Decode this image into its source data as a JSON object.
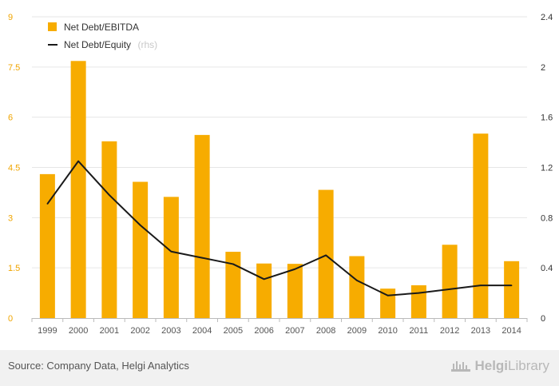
{
  "chart_data": {
    "type": "bar",
    "categories": [
      "1999",
      "2000",
      "2001",
      "2002",
      "2003",
      "2004",
      "2005",
      "2006",
      "2007",
      "2008",
      "2009",
      "2010",
      "2011",
      "2012",
      "2013",
      "2014"
    ],
    "series": [
      {
        "name": "Net Debt/EBITDA",
        "type": "bar",
        "axis": "left",
        "color": "#f7ac00",
        "values": [
          4.3,
          7.68,
          5.28,
          4.07,
          3.62,
          5.47,
          1.98,
          1.63,
          1.62,
          3.83,
          1.85,
          0.88,
          0.98,
          2.19,
          5.51,
          1.7
        ]
      },
      {
        "name": "Net Debt/Equity",
        "note": "(rhs)",
        "type": "line",
        "axis": "right",
        "color": "#1a1a1a",
        "values": [
          0.91,
          1.25,
          0.98,
          0.74,
          0.53,
          0.48,
          0.43,
          0.31,
          0.39,
          0.5,
          0.3,
          0.18,
          0.2,
          0.23,
          0.26,
          0.26
        ]
      }
    ],
    "yleft": {
      "ticks": [
        "0",
        "1.5",
        "3",
        "4.5",
        "6",
        "7.5",
        "9"
      ],
      "ylim": [
        0,
        9
      ]
    },
    "yright": {
      "ticks": [
        "0",
        "0.4",
        "0.8",
        "1.2",
        "1.6",
        "2",
        "2.4"
      ],
      "ylim": [
        0,
        2.4
      ]
    },
    "legend_position": "top-left",
    "grid": true
  },
  "footer": {
    "source": "Source: Company Data, Helgi Analytics",
    "brand_bold": "Helgi",
    "brand_light": "Library"
  },
  "colors": {
    "accent": "#f7ac00",
    "line": "#1a1a1a",
    "grid": "#e6e6e6",
    "footer_bg": "#f1f1f1"
  },
  "icons": {
    "brand": "helgi-library-logo-icon"
  }
}
